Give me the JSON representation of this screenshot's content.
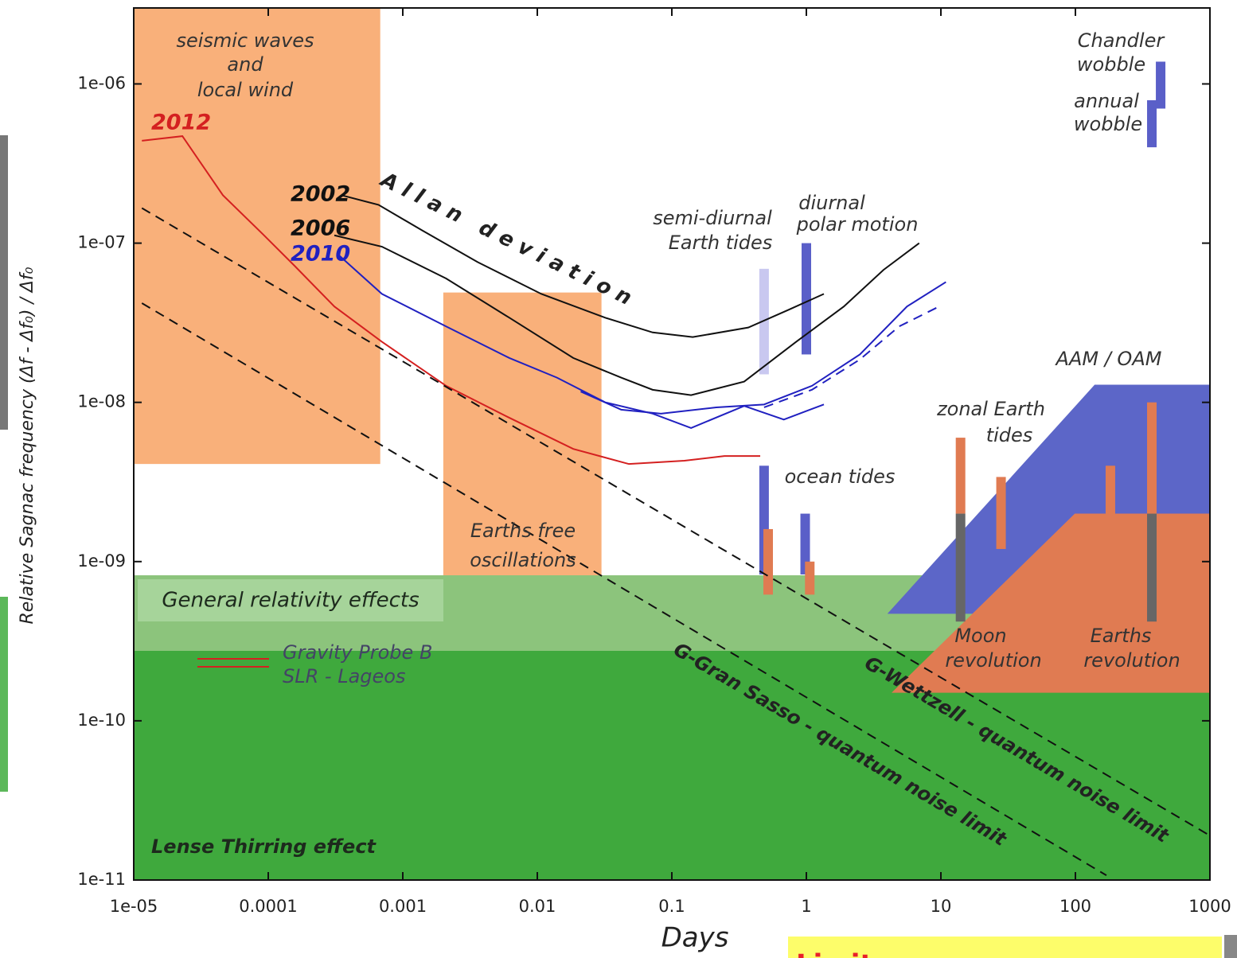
{
  "chart_data": {
    "type": "line",
    "x_label": "Days",
    "y_label": "Relative Sagnac frequency (Δf - Δf₀) / Δf₀",
    "log_x": true,
    "log_y": true,
    "xlim": [
      1e-05,
      1000
    ],
    "ylim": [
      1e-11,
      3e-06
    ],
    "xticks": [
      {
        "value": 1e-05,
        "label": "1e-05"
      },
      0.0001,
      0.001,
      0.01,
      0.1,
      1,
      10,
      100,
      1000
    ],
    "yticks": [
      1e-11,
      1e-10,
      {
        "value": 1e-09,
        "label": "1e-09"
      },
      {
        "value": 1e-08,
        "label": "1e-08"
      },
      {
        "value": 1e-07,
        "label": "1e-07"
      },
      {
        "value": 1e-06,
        "label": "1e-06"
      }
    ],
    "regions": [
      {
        "color": "#f9b07a",
        "x": [
          1e-05,
          0.00068,
          0.00068,
          1e-05
        ],
        "y": [
          3e-06,
          3e-06,
          4.1e-09,
          4.1e-09
        ]
      },
      {
        "color": "#f9b07a",
        "x": [
          0.002,
          0.03,
          0.03,
          0.002
        ],
        "y": [
          4.9e-08,
          4.9e-08,
          7.1e-10,
          7.1e-10
        ]
      },
      {
        "color": "#8cc47c",
        "x": [
          1e-05,
          1000,
          1000,
          1e-05
        ],
        "y": [
          8.2e-10,
          8.2e-10,
          2.75e-10,
          2.75e-10
        ]
      },
      {
        "color": "#3fa93d",
        "x": [
          1e-05,
          1000,
          1000,
          1e-05
        ],
        "y": [
          2.75e-10,
          2.75e-10,
          1e-11,
          1e-11
        ]
      },
      {
        "color": "#5c66c8",
        "x": [
          4.0,
          139,
          1000,
          1000
        ],
        "y": [
          4.7e-10,
          1.29e-08,
          1.29e-08,
          4.7e-10
        ]
      },
      {
        "color": "#e07b52",
        "x": [
          4.3,
          99,
          1000,
          1000
        ],
        "y": [
          1.5e-10,
          2e-09,
          2e-09,
          1.5e-10
        ]
      }
    ],
    "bars": [
      {
        "color": "#c9c8f0",
        "x": 0.485,
        "y": [
          1.5e-08,
          6.9e-08
        ]
      },
      {
        "color": "#5a5fc8",
        "x": 1.0,
        "y": [
          2e-08,
          1e-07
        ]
      },
      {
        "color": "#5a5fc8",
        "x": 0.485,
        "y": [
          8.3e-10,
          4e-09
        ]
      },
      {
        "color": "#e07b52",
        "x": 0.52,
        "y": [
          6.2e-10,
          1.6e-09
        ]
      },
      {
        "color": "#5a5fc8",
        "x": 0.98,
        "y": [
          8.3e-10,
          2e-09
        ]
      },
      {
        "color": "#e07b52",
        "x": 1.06,
        "y": [
          6.2e-10,
          1e-09
        ]
      },
      {
        "color": "#e07b52",
        "x": 14,
        "y": [
          2e-09,
          6e-09
        ]
      },
      {
        "color": "#666666",
        "x": 14,
        "y": [
          4.2e-10,
          2e-09
        ]
      },
      {
        "color": "#e07b52",
        "x": 28,
        "y": [
          1.2e-09,
          3.4e-09
        ]
      },
      {
        "color": "#e07b52",
        "x": 182,
        "y": [
          2e-09,
          4e-09
        ]
      },
      {
        "color": "#e07b52",
        "x": 370,
        "y": [
          2e-09,
          1e-08
        ]
      },
      {
        "color": "#666666",
        "x": 370,
        "y": [
          4.2e-10,
          2e-09
        ]
      },
      {
        "color": "#5a5fc8",
        "x": 430,
        "y": [
          7e-07,
          1.38e-06
        ]
      },
      {
        "color": "#5a5fc8",
        "x": 370,
        "y": [
          4e-07,
          7.9e-07
        ]
      }
    ],
    "series": [
      {
        "name": "2012",
        "color": "#d42020",
        "x": [
          1.15e-05,
          2.3e-05,
          4.6e-05,
          9.1e-05,
          0.000157,
          0.00031,
          0.0007,
          0.0021,
          0.0062,
          0.0185,
          0.048,
          0.124,
          0.246,
          0.454
        ],
        "values": [
          4.4e-07,
          4.7e-07,
          2e-07,
          1.14e-07,
          7.2e-08,
          4e-08,
          2.4e-08,
          1.27e-08,
          8e-09,
          5.1e-09,
          4.1e-09,
          4.3e-09,
          4.6e-09,
          4.6e-09
        ]
      },
      {
        "name": "2002",
        "color": "#111111",
        "x": [
          0.00035,
          0.00066,
          0.0014,
          0.0036,
          0.0107,
          0.032,
          0.072,
          0.143,
          0.37,
          0.73,
          1.35
        ],
        "values": [
          2e-07,
          1.74e-07,
          1.2e-07,
          7.6e-08,
          4.8e-08,
          3.4e-08,
          2.75e-08,
          2.57e-08,
          2.95e-08,
          3.8e-08,
          4.8e-08
        ]
      },
      {
        "name": "2006",
        "color": "#111111",
        "x": [
          0.00031,
          0.0007,
          0.0021,
          0.0062,
          0.0185,
          0.042,
          0.072,
          0.139,
          0.345,
          0.84,
          1.9,
          3.75,
          6.9
        ],
        "values": [
          1.12e-07,
          9.5e-08,
          6e-08,
          3.4e-08,
          1.9e-08,
          1.43e-08,
          1.2e-08,
          1.11e-08,
          1.35e-08,
          2.4e-08,
          4e-08,
          6.8e-08,
          1e-07
        ]
      },
      {
        "name": "2010",
        "color": "#2020c0",
        "x": [
          0.00033,
          0.0007,
          0.0021,
          0.0062,
          0.014,
          0.032,
          0.072,
          0.139,
          0.345,
          0.68,
          1.35
        ],
        "values": [
          8.5e-08,
          4.8e-08,
          3e-08,
          1.9e-08,
          1.43e-08,
          1e-08,
          8.5e-09,
          6.9e-09,
          9.5e-09,
          7.8e-09,
          9.7e-09
        ]
      },
      {
        "color": "#2020c0",
        "x": [
          0.021,
          0.042,
          0.083,
          0.214,
          0.485,
          1.1,
          2.5,
          5.6,
          10.9
        ],
        "values": [
          1.17e-08,
          9e-09,
          8.5e-09,
          9.3e-09,
          9.7e-09,
          1.27e-08,
          2e-08,
          4e-08,
          5.7e-08
        ]
      },
      {
        "color": "#2020c0",
        "dash": true,
        "x": [
          0.485,
          1.1,
          2.5,
          4.9,
          9.7
        ],
        "values": [
          9.3e-09,
          1.2e-08,
          1.86e-08,
          3e-08,
          4e-08
        ]
      },
      {
        "name": "G-Gran Sasso - quantum noise limit",
        "color": "#111111",
        "dash": true,
        "x": [
          1.15e-05,
          170
        ],
        "values": [
          4.2e-08,
          1.07e-11
        ]
      },
      {
        "name": "G-Wettzell - quantum noise limit",
        "color": "#111111",
        "dash": true,
        "x": [
          1.15e-05,
          1000
        ],
        "values": [
          1.66e-07,
          1.9e-11
        ]
      }
    ],
    "annotations": [
      "seismic waves",
      "and",
      "local wind",
      "Allan deviation",
      "semi-diurnal",
      "Earth tides",
      "diurnal",
      "polar motion",
      "Chandler",
      "wobble",
      "annual",
      "wobble",
      "AAM / OAM",
      "zonal Earth",
      "tides",
      "ocean tides",
      "Earths free",
      "oscillations",
      "General relativity effects",
      "Gravity Probe B",
      "SLR - Lageos",
      "Moon",
      "revolution",
      "Earths",
      "revolution",
      "Lense Thirring effect",
      "Limit"
    ]
  }
}
